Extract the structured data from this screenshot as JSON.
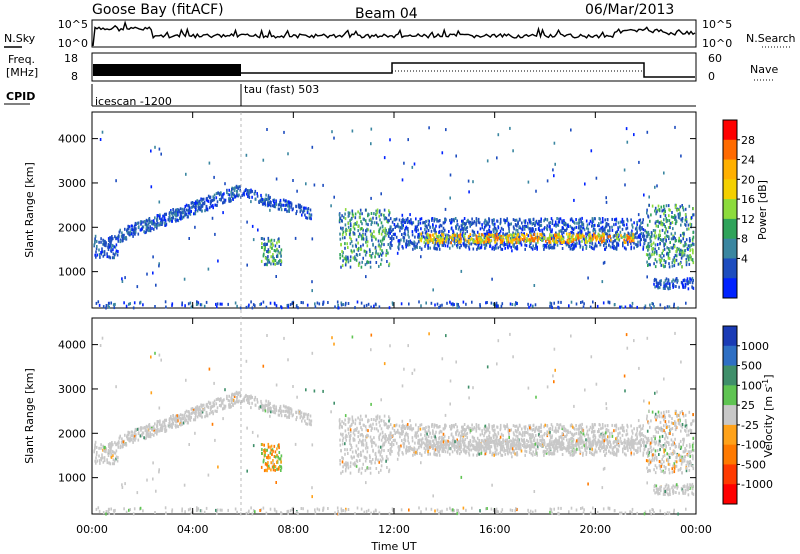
{
  "header": {
    "radar": "Goose Bay (fitACF)",
    "beam": "Beam 04",
    "date": "06/Mar/2013"
  },
  "strip_labels": {
    "nsky": "N.Sky",
    "nsearch": "N.Search",
    "freq": "Freq.",
    "freq_unit": "[MHz]",
    "nave": "Nave",
    "cpid": "CPID"
  },
  "strip_ticks": {
    "noise_left": [
      "10^5",
      "10^0"
    ],
    "noise_right": [
      "10^5",
      "10^0"
    ],
    "freq_left": [
      "18",
      "8"
    ],
    "nave_right": [
      "60",
      "0"
    ]
  },
  "cpid_segments": [
    {
      "label": "icescan -1200",
      "start_hour": 0,
      "end_hour": 6
    },
    {
      "label": "tau (fast) 503",
      "start_hour": 6,
      "end_hour": 24
    }
  ],
  "chart_data": [
    {
      "type": "heatmap",
      "ylabel": "Slant Range [km]",
      "ylim": [
        180,
        4600
      ],
      "yticks": [
        1000,
        2000,
        3000,
        4000
      ],
      "colorbar": {
        "label": "Power [dB]",
        "tick_labels": [
          "28",
          "24",
          "20",
          "16",
          "12",
          "8",
          "4"
        ],
        "colors": [
          "#ff0000",
          "#ff6a00",
          "#ffb000",
          "#f4d000",
          "#8cdb3c",
          "#2fa35a",
          "#3a86a0",
          "#1d4dbf",
          "#0022ff"
        ]
      }
    },
    {
      "type": "heatmap",
      "ylabel": "Slant Range [km]",
      "xlabel": "Time UT",
      "ylim": [
        180,
        4600
      ],
      "yticks": [
        1000,
        2000,
        3000,
        4000
      ],
      "xticks": [
        "00:00",
        "04:00",
        "08:00",
        "12:00",
        "16:00",
        "20:00",
        "00:00"
      ],
      "colorbar": {
        "label": "Velocity [m s^-1]",
        "tick_labels": [
          "1000",
          "500",
          "100",
          "25",
          "-25",
          "-100",
          "-500",
          "-1000"
        ],
        "colors": [
          "#1a3bb5",
          "#2e6fc4",
          "#3f8f6a",
          "#5fc452",
          "#c8c8c8",
          "#ffa21a",
          "#ff7a00",
          "#ff3a00",
          "#ff0000"
        ]
      }
    }
  ],
  "colors": {
    "power_main": "#1d4dbf",
    "ground_scatter": "#c8c8c8"
  }
}
